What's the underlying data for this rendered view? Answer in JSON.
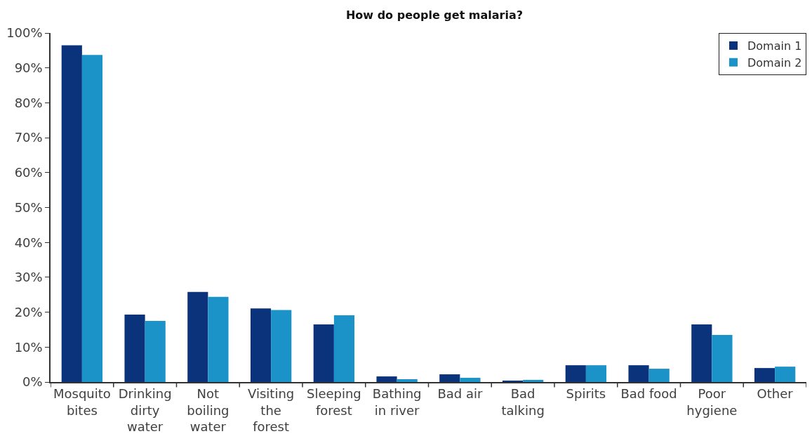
{
  "chart_data": {
    "type": "bar",
    "title": "How do people get malaria?",
    "categories": [
      "Mosquito\nbites",
      "Drinking\ndirty\nwater",
      "Not\nboiling\nwater",
      "Visiting\nthe\nforest",
      "Sleeping\nforest",
      "Bathing\nin river",
      "Bad air",
      "Bad\ntalking",
      "Spirits",
      "Bad food",
      "Poor\nhygiene",
      "Other"
    ],
    "series": [
      {
        "name": "Domain 1",
        "color": "#0b337c",
        "values": [
          96.5,
          19.3,
          25.8,
          21.1,
          16.5,
          1.6,
          2.2,
          0.4,
          4.8,
          4.8,
          16.5,
          4.0
        ]
      },
      {
        "name": "Domain 2",
        "color": "#1b93c8",
        "values": [
          93.7,
          17.5,
          24.4,
          20.6,
          19.1,
          0.8,
          1.2,
          0.6,
          4.8,
          3.8,
          13.5,
          4.4
        ]
      }
    ],
    "ylim": [
      0,
      100
    ],
    "yticks": [
      {
        "value": 0,
        "label": "0%"
      },
      {
        "value": 10,
        "label": "10%"
      },
      {
        "value": 20,
        "label": "20%"
      },
      {
        "value": 30,
        "label": "30%"
      },
      {
        "value": 40,
        "label": "40%"
      },
      {
        "value": 50,
        "label": "50%"
      },
      {
        "value": 60,
        "label": "60%"
      },
      {
        "value": 70,
        "label": "70%"
      },
      {
        "value": 80,
        "label": "80%"
      },
      {
        "value": 90,
        "label": "90%"
      },
      {
        "value": 100,
        "label": "100%"
      }
    ],
    "grid": false,
    "legend": "top right"
  }
}
